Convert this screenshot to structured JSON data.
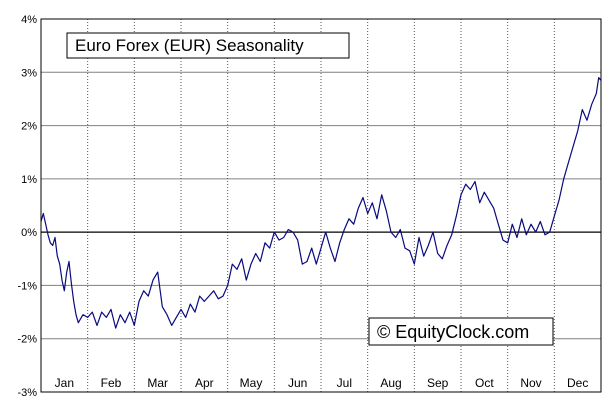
{
  "chart_data": {
    "type": "line",
    "title": "Euro Forex (EUR) Seasonality",
    "watermark": "© EquityClock.com",
    "xlabel": "",
    "ylabel": "",
    "x_categories": [
      "Jan",
      "Feb",
      "Mar",
      "Apr",
      "May",
      "Jun",
      "Jul",
      "Aug",
      "Sep",
      "Oct",
      "Nov",
      "Dec"
    ],
    "y_ticks": [
      {
        "value": 4,
        "label": "4%"
      },
      {
        "value": 3,
        "label": "3%"
      },
      {
        "value": 2,
        "label": "2%"
      },
      {
        "value": 1,
        "label": "1%"
      },
      {
        "value": 0,
        "label": "0%"
      },
      {
        "value": -1,
        "label": "-1%"
      },
      {
        "value": -2,
        "label": "-2%"
      },
      {
        "value": -3,
        "label": "-3%"
      }
    ],
    "xlim": [
      0,
      12
    ],
    "ylim": [
      -3,
      4
    ],
    "grid": {
      "horizontal": "solid",
      "vertical": "dotted"
    },
    "line_color": "#0a0a80",
    "series": [
      {
        "name": "",
        "x": [
          0.0,
          0.05,
          0.1,
          0.15,
          0.2,
          0.25,
          0.3,
          0.35,
          0.4,
          0.45,
          0.5,
          0.55,
          0.6,
          0.65,
          0.7,
          0.75,
          0.8,
          0.9,
          1.0,
          1.1,
          1.2,
          1.3,
          1.4,
          1.5,
          1.6,
          1.7,
          1.8,
          1.9,
          2.0,
          2.1,
          2.2,
          2.3,
          2.4,
          2.5,
          2.6,
          2.7,
          2.8,
          2.9,
          3.0,
          3.1,
          3.2,
          3.3,
          3.4,
          3.5,
          3.6,
          3.7,
          3.8,
          3.9,
          4.0,
          4.1,
          4.2,
          4.3,
          4.4,
          4.5,
          4.6,
          4.7,
          4.8,
          4.9,
          5.0,
          5.1,
          5.2,
          5.3,
          5.4,
          5.5,
          5.6,
          5.7,
          5.8,
          5.9,
          6.0,
          6.1,
          6.2,
          6.3,
          6.4,
          6.5,
          6.6,
          6.7,
          6.8,
          6.9,
          7.0,
          7.1,
          7.2,
          7.3,
          7.4,
          7.5,
          7.6,
          7.7,
          7.8,
          7.9,
          8.0,
          8.1,
          8.2,
          8.3,
          8.4,
          8.5,
          8.6,
          8.7,
          8.8,
          8.9,
          9.0,
          9.1,
          9.2,
          9.3,
          9.4,
          9.5,
          9.6,
          9.7,
          9.8,
          9.9,
          10.0,
          10.1,
          10.2,
          10.3,
          10.4,
          10.5,
          10.6,
          10.7,
          10.8,
          10.9,
          11.0,
          11.1,
          11.2,
          11.3,
          11.4,
          11.5,
          11.6,
          11.7,
          11.8,
          11.9,
          11.95,
          12.0
        ],
        "y": [
          0.2,
          0.35,
          0.15,
          -0.05,
          -0.2,
          -0.25,
          -0.1,
          -0.45,
          -0.6,
          -0.9,
          -1.1,
          -0.75,
          -0.55,
          -0.95,
          -1.3,
          -1.55,
          -1.7,
          -1.55,
          -1.6,
          -1.5,
          -1.75,
          -1.5,
          -1.6,
          -1.45,
          -1.8,
          -1.55,
          -1.7,
          -1.5,
          -1.75,
          -1.3,
          -1.1,
          -1.2,
          -0.9,
          -0.75,
          -1.4,
          -1.55,
          -1.75,
          -1.6,
          -1.45,
          -1.6,
          -1.35,
          -1.5,
          -1.2,
          -1.3,
          -1.2,
          -1.1,
          -1.25,
          -1.2,
          -1.0,
          -0.6,
          -0.7,
          -0.5,
          -0.9,
          -0.6,
          -0.4,
          -0.55,
          -0.2,
          -0.3,
          0.0,
          -0.15,
          -0.1,
          0.05,
          0.0,
          -0.15,
          -0.6,
          -0.55,
          -0.3,
          -0.6,
          -0.3,
          0.0,
          -0.3,
          -0.55,
          -0.2,
          0.05,
          0.25,
          0.15,
          0.45,
          0.65,
          0.35,
          0.55,
          0.25,
          0.7,
          0.4,
          0.0,
          -0.1,
          0.05,
          -0.3,
          -0.35,
          -0.6,
          -0.1,
          -0.45,
          -0.25,
          0.0,
          -0.4,
          -0.5,
          -0.25,
          -0.05,
          0.3,
          0.7,
          0.9,
          0.8,
          0.95,
          0.55,
          0.75,
          0.6,
          0.45,
          0.15,
          -0.15,
          -0.2,
          0.15,
          -0.1,
          0.25,
          -0.05,
          0.15,
          0.0,
          0.2,
          -0.05,
          0.0,
          0.3,
          0.6,
          1.0,
          1.3,
          1.6,
          1.9,
          2.3,
          2.1,
          2.4,
          2.6,
          2.9,
          2.85
        ]
      }
    ]
  }
}
